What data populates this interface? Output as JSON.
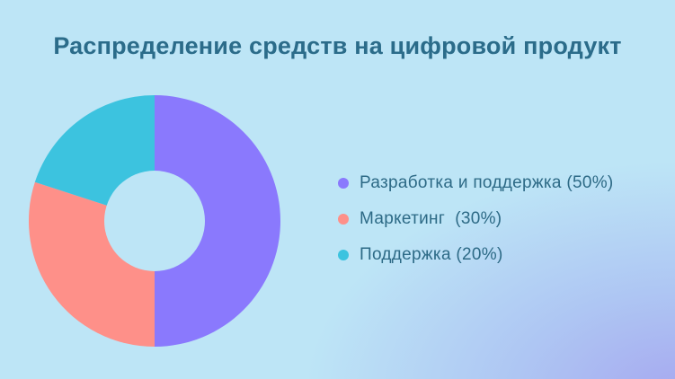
{
  "title": "Распределение средств на цифровой продукт",
  "legend": [
    {
      "label": "Разработка и поддержка (50%)",
      "color": "#8a79fd"
    },
    {
      "label": "Маркетинг  (30%)",
      "color": "#fe9089"
    },
    {
      "label": "Поддержка (20%)",
      "color": "#3cc3df"
    }
  ],
  "chart_data": {
    "type": "pie",
    "variant": "donut",
    "title": "Распределение средств на цифровой продукт",
    "categories": [
      "Разработка и поддержка",
      "Маркетинг",
      "Поддержка"
    ],
    "values": [
      50,
      30,
      20
    ],
    "unit": "%",
    "colors": [
      "#8a79fd",
      "#fe9089",
      "#3cc3df"
    ],
    "legend_position": "right",
    "start_angle": "top, clockwise"
  }
}
